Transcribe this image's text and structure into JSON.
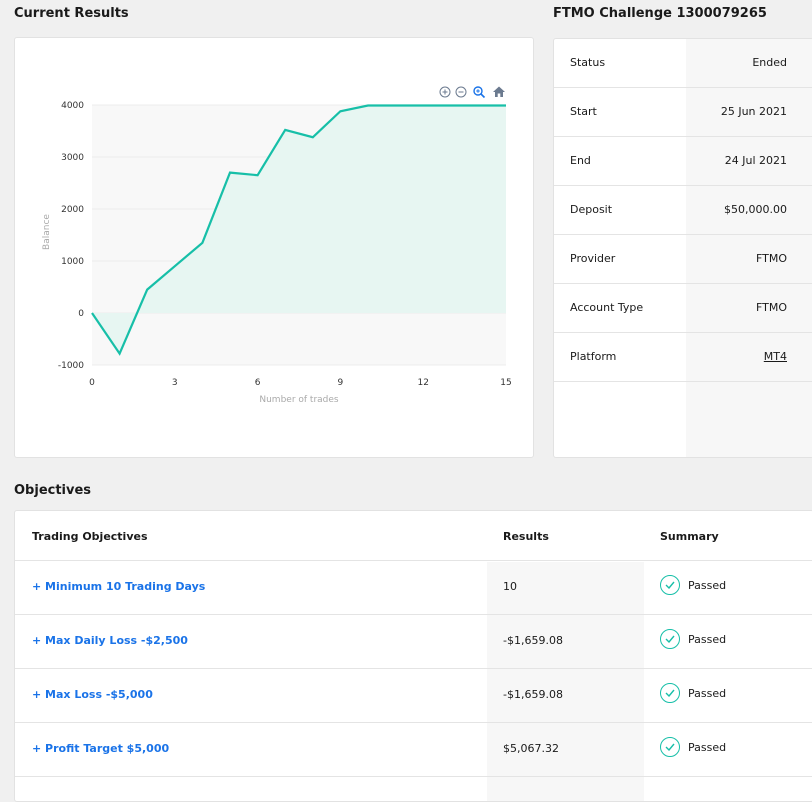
{
  "sections": {
    "current_results": "Current Results",
    "challenge_title": "FTMO Challenge 1300079265",
    "objectives": "Objectives"
  },
  "info": [
    {
      "label": "Status",
      "value": "Ended"
    },
    {
      "label": "Start",
      "value": "25 Jun 2021"
    },
    {
      "label": "End",
      "value": "24 Jul 2021"
    },
    {
      "label": "Deposit",
      "value": "$50,000.00"
    },
    {
      "label": "Provider",
      "value": "FTMO"
    },
    {
      "label": "Account Type",
      "value": "FTMO"
    },
    {
      "label": "Platform",
      "value": "MT4"
    }
  ],
  "objectives_table": {
    "headers": {
      "objective": "Trading Objectives",
      "results": "Results",
      "summary": "Summary"
    },
    "rows": [
      {
        "name": "+ Minimum 10 Trading Days",
        "result": "10",
        "status": "Passed"
      },
      {
        "name": "+ Max Daily Loss -$2,500",
        "result": "-$1,659.08",
        "status": "Passed"
      },
      {
        "name": "+ Max Loss -$5,000",
        "result": "-$1,659.08",
        "status": "Passed"
      },
      {
        "name": "+ Profit Target $5,000",
        "result": "$5,067.32",
        "status": "Passed"
      }
    ]
  },
  "chart_toolbar": [
    "zoom-in-icon",
    "zoom-out-icon",
    "magnifier-icon",
    "home-icon"
  ],
  "colors": {
    "line": "#17bfa8",
    "fill": "#e7f6f2",
    "link": "#1a73e8",
    "check": "#17bfa8"
  },
  "chart_data": {
    "type": "area",
    "xlabel": "Number of trades",
    "ylabel": "Balance",
    "xlim": [
      0,
      15
    ],
    "ylim": [
      -1000,
      4000
    ],
    "xticks": [
      0,
      3,
      6,
      9,
      12,
      15
    ],
    "yticks": [
      -1000,
      0,
      1000,
      2000,
      3000,
      4000
    ],
    "x": [
      0,
      1,
      2,
      3,
      4,
      5,
      6,
      7,
      8,
      9,
      10,
      11,
      12,
      13,
      14,
      15
    ],
    "y": [
      0,
      -780,
      450,
      900,
      1350,
      2700,
      2650,
      3520,
      3380,
      3880,
      3990,
      3990,
      3990,
      3990,
      3990,
      3990
    ]
  }
}
